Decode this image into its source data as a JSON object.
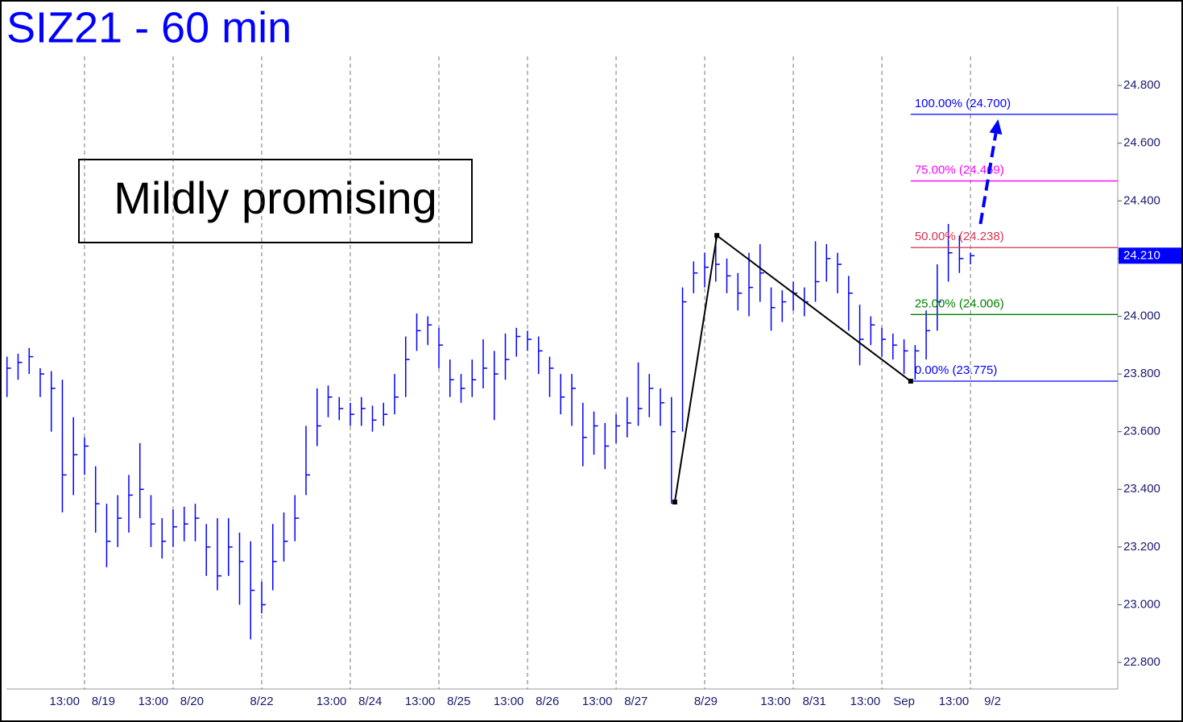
{
  "chart_data": {
    "type": "ohlc",
    "title": "SIZ21 - 60 min",
    "annotation": "Mildly promising",
    "xlim": [
      -7.05,
      93.3
    ],
    "ylim": [
      22.708,
      25.074
    ],
    "xgrid": [
      0,
      8,
      16,
      24,
      32,
      40,
      48,
      56,
      64,
      72,
      80
    ],
    "xticks": [
      {
        "value": -1.8,
        "label": "13:00"
      },
      {
        "value": 1.7,
        "label": "8/19"
      },
      {
        "value": 6.2,
        "label": "13:00"
      },
      {
        "value": 9.7,
        "label": "8/20"
      },
      {
        "value": 16.0,
        "label": "8/22"
      },
      {
        "value": 22.3,
        "label": "13:00"
      },
      {
        "value": 25.8,
        "label": "8/24"
      },
      {
        "value": 30.3,
        "label": "13:00"
      },
      {
        "value": 33.8,
        "label": "8/25"
      },
      {
        "value": 38.3,
        "label": "13:00"
      },
      {
        "value": 41.8,
        "label": "8/26"
      },
      {
        "value": 46.3,
        "label": "13:00"
      },
      {
        "value": 49.8,
        "label": "8/27"
      },
      {
        "value": 56.1,
        "label": "8/29"
      },
      {
        "value": 62.4,
        "label": "13:00"
      },
      {
        "value": 65.9,
        "label": "8/31"
      },
      {
        "value": 70.5,
        "label": "13:00"
      },
      {
        "value": 74.0,
        "label": "Sep"
      },
      {
        "value": 78.5,
        "label": "13:00"
      },
      {
        "value": 82.0,
        "label": "9/2"
      }
    ],
    "yticks": [
      {
        "value": 22.8,
        "label": "22.800"
      },
      {
        "value": 23.0,
        "label": "23.000"
      },
      {
        "value": 23.2,
        "label": "23.200"
      },
      {
        "value": 23.4,
        "label": "23.400"
      },
      {
        "value": 23.6,
        "label": "23.600"
      },
      {
        "value": 23.8,
        "label": "23.800"
      },
      {
        "value": 24.0,
        "label": "24.000"
      },
      {
        "value": 24.2,
        "label": "24.200"
      },
      {
        "value": 24.4,
        "label": "24.400"
      },
      {
        "value": 24.6,
        "label": "24.600"
      },
      {
        "value": 24.8,
        "label": "24.800"
      }
    ],
    "last": {
      "value": 24.21,
      "label": "24.210"
    },
    "series": [
      {
        "color": "#0000ff",
        "x": [
          -7,
          -6,
          -5,
          -4,
          -3,
          -2,
          -1,
          0,
          1,
          2,
          3,
          4,
          5,
          6,
          7,
          8,
          9,
          10,
          11,
          12,
          13,
          14,
          15,
          16,
          17,
          18,
          19,
          20,
          21,
          22,
          23,
          24,
          25,
          26,
          27,
          28,
          29,
          30,
          31,
          32,
          33,
          34,
          35,
          36,
          37,
          38,
          39,
          40,
          41,
          42,
          43,
          44,
          45,
          46,
          47,
          48,
          49,
          50,
          51,
          52,
          53,
          54,
          55,
          56,
          57,
          58,
          59,
          60,
          61,
          62,
          63,
          64,
          65,
          66,
          67,
          68,
          69,
          70,
          71,
          72,
          73,
          74,
          75,
          76,
          77,
          78,
          79,
          80
        ],
        "high": [
          23.86,
          23.87,
          23.89,
          23.82,
          23.81,
          23.78,
          23.65,
          23.58,
          23.48,
          23.35,
          23.38,
          23.45,
          23.56,
          23.38,
          23.3,
          23.33,
          23.34,
          23.35,
          23.28,
          23.3,
          23.3,
          23.25,
          23.22,
          23.08,
          23.28,
          23.32,
          23.38,
          23.62,
          23.75,
          23.76,
          23.72,
          23.7,
          23.72,
          23.69,
          23.7,
          23.8,
          23.93,
          24.01,
          24.0,
          23.96,
          23.85,
          23.8,
          23.85,
          23.92,
          23.88,
          23.94,
          23.96,
          23.95,
          23.93,
          23.86,
          23.8,
          23.8,
          23.7,
          23.67,
          23.63,
          23.66,
          23.72,
          23.84,
          23.8,
          23.75,
          23.72,
          24.1,
          24.19,
          24.22,
          24.28,
          24.2,
          24.15,
          24.22,
          24.25,
          24.1,
          24.09,
          24.12,
          24.1,
          24.26,
          24.25,
          24.22,
          24.14,
          24.04,
          24.0,
          23.96,
          23.94,
          23.92,
          23.9,
          24.02,
          24.18,
          24.32,
          24.28,
          24.22
        ],
        "low": [
          23.72,
          23.78,
          23.8,
          23.72,
          23.6,
          23.32,
          23.38,
          23.45,
          23.25,
          23.13,
          23.2,
          23.25,
          23.3,
          23.2,
          23.16,
          23.2,
          23.22,
          23.22,
          23.1,
          23.05,
          23.1,
          23.0,
          22.88,
          22.97,
          23.05,
          23.15,
          23.22,
          23.38,
          23.55,
          23.65,
          23.64,
          23.62,
          23.62,
          23.6,
          23.62,
          23.66,
          23.72,
          23.88,
          23.9,
          23.82,
          23.72,
          23.7,
          23.72,
          23.75,
          23.64,
          23.78,
          23.86,
          23.88,
          23.8,
          23.72,
          23.66,
          23.62,
          23.48,
          23.52,
          23.47,
          23.56,
          23.58,
          23.62,
          23.65,
          23.62,
          23.35,
          23.6,
          24.08,
          24.1,
          24.12,
          24.08,
          24.02,
          24.0,
          24.05,
          23.95,
          23.98,
          24.02,
          24.0,
          24.05,
          24.12,
          24.08,
          23.95,
          23.83,
          23.9,
          23.86,
          23.85,
          23.8,
          23.78,
          23.85,
          23.95,
          24.12,
          24.15,
          24.18
        ],
        "close": [
          23.82,
          23.84,
          23.86,
          23.8,
          23.75,
          23.45,
          23.52,
          23.55,
          23.35,
          23.22,
          23.3,
          23.38,
          23.4,
          23.28,
          23.22,
          23.27,
          23.28,
          23.3,
          23.2,
          23.1,
          23.2,
          23.15,
          23.05,
          23.0,
          23.15,
          23.22,
          23.3,
          23.45,
          23.62,
          23.72,
          23.68,
          23.66,
          23.68,
          23.64,
          23.66,
          23.72,
          23.85,
          23.95,
          23.97,
          23.9,
          23.78,
          23.75,
          23.78,
          23.82,
          23.8,
          23.85,
          23.93,
          23.92,
          23.88,
          23.82,
          23.72,
          23.75,
          23.58,
          23.62,
          23.55,
          23.62,
          23.63,
          23.68,
          23.75,
          23.7,
          23.6,
          24.05,
          24.15,
          24.17,
          24.18,
          24.14,
          24.08,
          24.1,
          24.15,
          24.03,
          24.05,
          24.08,
          24.05,
          24.12,
          24.2,
          24.18,
          24.08,
          23.92,
          23.97,
          23.92,
          23.9,
          23.88,
          23.88,
          23.95,
          24.05,
          24.22,
          24.2,
          24.21
        ]
      }
    ],
    "zigzag": {
      "color": "#000000",
      "x": [
        53.3,
        57.1,
        74.6
      ],
      "values": [
        23.356,
        24.28,
        23.775
      ]
    },
    "arrow": {
      "color": "#0000ff",
      "x": [
        80.9,
        82.5
      ],
      "values": [
        24.32,
        24.683
      ]
    },
    "levels": [
      {
        "label": "100.00% (24.700)",
        "value": 24.7,
        "color": "#0000ff"
      },
      {
        "label": "75.00% (24.469)",
        "value": 24.469,
        "color": "#ff00ff"
      },
      {
        "label": "50.00% (24.238)",
        "value": 24.238,
        "color": "#d8344e"
      },
      {
        "label": "25.00% (24.006)",
        "value": 24.006,
        "color": "#008000"
      },
      {
        "label": "0.00% (23.775)",
        "value": 23.775,
        "color": "#0000ff"
      }
    ]
  }
}
